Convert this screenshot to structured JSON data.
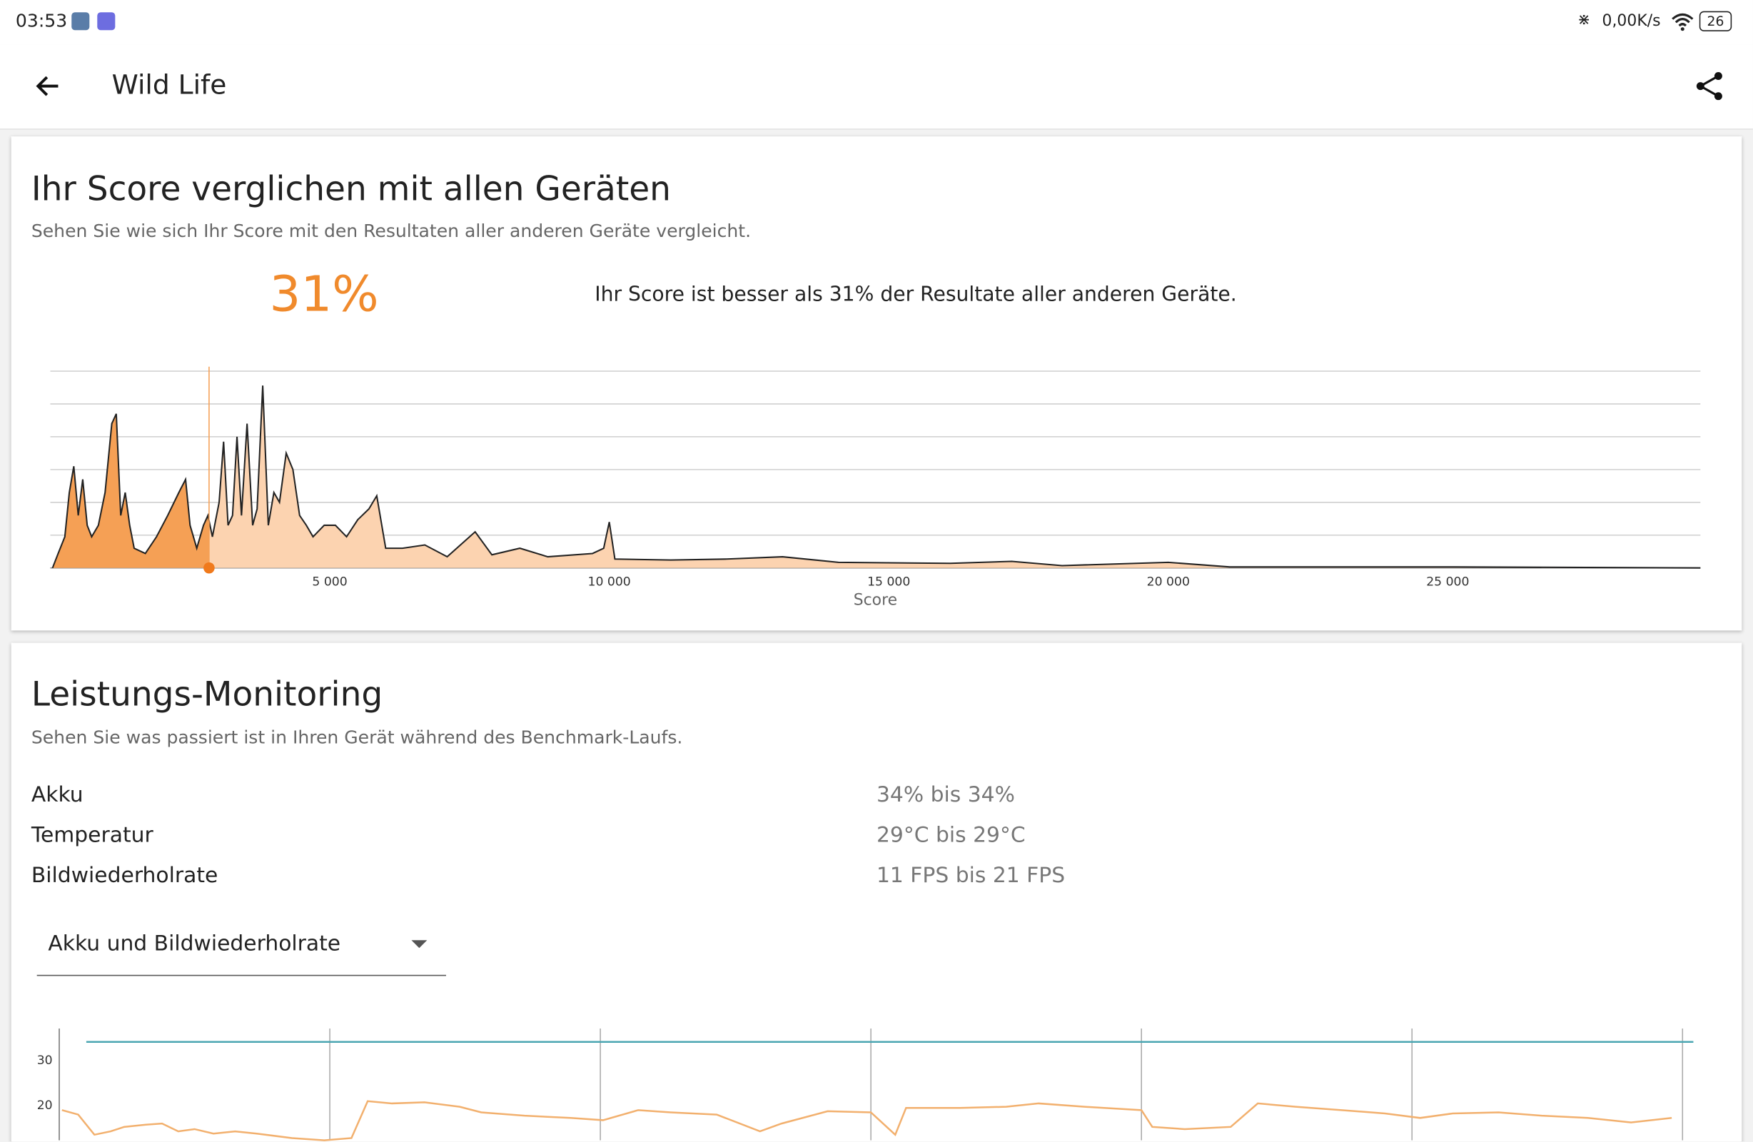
{
  "status_bar": {
    "time": "03:53",
    "network_speed": "0,00K/s",
    "battery": "26"
  },
  "app_bar": {
    "title": "Wild Life"
  },
  "score_card": {
    "title": "Ihr Score verglichen mit allen Geräten",
    "subtitle": "Sehen Sie wie sich Ihr Score mit den Resultaten aller anderen Geräte vergleicht.",
    "percentile": "31%",
    "summary": "Ihr Score ist besser als 31% der Resultate aller anderen Geräte.",
    "chart": {
      "type": "area",
      "x_label": "Score",
      "x": [
        40,
        140,
        260,
        340,
        420,
        500,
        580,
        660,
        740,
        860,
        980,
        1100,
        1180,
        1260,
        1340,
        1420,
        1500,
        1700,
        1900,
        2100,
        2300,
        2420,
        2500,
        2620,
        2740,
        2820,
        2900,
        3020,
        3100,
        3180,
        3260,
        3340,
        3420,
        3520,
        3620,
        3700,
        3800,
        3900,
        4000,
        4100,
        4220,
        4340,
        4460,
        4580,
        4700,
        4900,
        5100,
        5300,
        5500,
        5700,
        5840,
        6000,
        6300,
        6700,
        7100,
        7600,
        7900,
        8400,
        8900,
        9700,
        9900,
        10000,
        10100,
        11100,
        12100,
        13100,
        14100,
        16100,
        17200,
        18100,
        20000,
        21100,
        25100,
        29520
      ],
      "values": [
        0,
        0.44,
        0.95,
        2.3,
        3.1,
        1.6,
        2.7,
        1.3,
        0.95,
        1.3,
        2.3,
        4.4,
        4.7,
        1.6,
        2.3,
        1.3,
        0.6,
        0.44,
        0.95,
        1.6,
        2.3,
        2.7,
        1.3,
        0.6,
        1.3,
        1.6,
        0.95,
        2.0,
        3.85,
        1.3,
        1.6,
        4.0,
        1.6,
        4.4,
        1.3,
        1.8,
        5.56,
        1.3,
        2.3,
        2.0,
        3.5,
        3.0,
        1.6,
        1.3,
        0.95,
        1.3,
        1.3,
        0.95,
        1.47,
        1.8,
        2.2,
        0.6,
        0.6,
        0.7,
        0.34,
        1.1,
        0.4,
        0.6,
        0.34,
        0.44,
        0.6,
        1.4,
        0.27,
        0.24,
        0.27,
        0.34,
        0.17,
        0.14,
        0.2,
        0.07,
        0.17,
        0.03,
        0.03,
        0
      ],
      "xlim": [
        0,
        29520
      ],
      "ylim": [
        0,
        6
      ],
      "xticks": [
        {
          "value": 5000,
          "label": "5 000"
        },
        {
          "value": 10000,
          "label": "10 000"
        },
        {
          "value": 15000,
          "label": "15 000"
        },
        {
          "value": 20000,
          "label": "20 000"
        },
        {
          "value": 25000,
          "label": "25 000"
        }
      ],
      "gridlines": [
        0,
        1,
        2,
        3,
        4,
        5,
        6
      ],
      "marker_x": 2840,
      "color": "#fcd3b0",
      "highlight_color": "#f5a055",
      "line_color": "#222222",
      "marker_color": "#f07a1c"
    }
  },
  "monitoring_card": {
    "title": "Leistungs-Monitoring",
    "subtitle": "Sehen Sie was passiert ist in Ihren Gerät während des Benchmark-Laufs.",
    "rows": [
      {
        "label": "Akku",
        "value": "34% bis 34%"
      },
      {
        "label": "Temperatur",
        "value": "29°C bis 29°C"
      },
      {
        "label": "Bildwiederholrate",
        "value": "11 FPS bis 21 FPS"
      }
    ],
    "dropdown": "Akku und Bildwiederholrate",
    "chart": {
      "type": "line",
      "xlim": [
        0,
        6
      ],
      "ylim": [
        12,
        37
      ],
      "yticks": [
        20,
        30
      ],
      "vgrid": [
        1,
        2,
        3,
        4,
        5,
        6
      ],
      "series": [
        {
          "color": "#4aa6b2",
          "x": [
            0.1,
            6.04
          ],
          "values": [
            34,
            34
          ]
        },
        {
          "color": "#f2b06e",
          "x": [
            0.01,
            0.07,
            0.13,
            0.19,
            0.24,
            0.32,
            0.38,
            0.44,
            0.5,
            0.57,
            0.65,
            0.73,
            0.86,
            0.98,
            1.08,
            1.14,
            1.23,
            1.35,
            1.48,
            1.56,
            1.72,
            1.89,
            2.01,
            2.14,
            2.26,
            2.43,
            2.59,
            2.67,
            2.84,
            3.0,
            3.09,
            3.13,
            3.33,
            3.5,
            3.62,
            3.79,
            4.0,
            4.04,
            4.16,
            4.33,
            4.43,
            4.57,
            4.74,
            4.9,
            5.03,
            5.15,
            5.32,
            5.48,
            5.65,
            5.81,
            5.96
          ],
          "values": [
            18.75,
            17.75,
            13.25,
            14,
            15,
            15.5,
            15.75,
            14,
            14.5,
            13.5,
            14,
            13.5,
            12.5,
            12,
            12.5,
            20.75,
            20.25,
            20.5,
            19.5,
            18.25,
            17.5,
            17,
            16.5,
            18.75,
            18.25,
            17.75,
            14,
            15.75,
            18.5,
            18.25,
            13.25,
            19.25,
            19.25,
            19.5,
            20.25,
            19.5,
            18.75,
            15,
            14.5,
            15,
            20.25,
            19.5,
            18.75,
            18,
            17,
            18,
            18.25,
            17.5,
            17,
            16,
            17
          ]
        }
      ]
    }
  }
}
